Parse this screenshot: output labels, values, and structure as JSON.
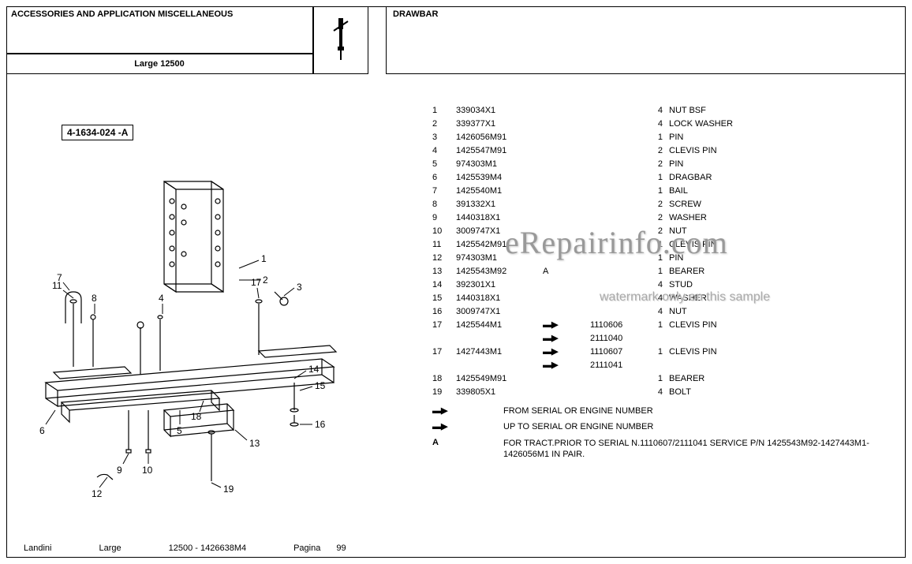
{
  "header": {
    "section_title": "ACCESSORIES AND APPLICATION MISCELLANEOUS",
    "model": "Large 12500",
    "assembly_title": "DRAWBAR"
  },
  "diagram": {
    "code": "4-1634-024 -A",
    "callouts": [
      "1",
      "2",
      "3",
      "4",
      "5",
      "6",
      "7",
      "8",
      "9",
      "10",
      "11",
      "12",
      "13",
      "14",
      "15",
      "16",
      "17",
      "18",
      "19"
    ]
  },
  "parts": [
    {
      "ref": "1",
      "part": "339034X1",
      "note": "",
      "serial": "",
      "qty": "4",
      "desc": "NUT BSF"
    },
    {
      "ref": "2",
      "part": "339377X1",
      "note": "",
      "serial": "",
      "qty": "4",
      "desc": "LOCK WASHER"
    },
    {
      "ref": "3",
      "part": "1426056M91",
      "note": "",
      "serial": "",
      "qty": "1",
      "desc": "PIN"
    },
    {
      "ref": "4",
      "part": "1425547M91",
      "note": "",
      "serial": "",
      "qty": "2",
      "desc": "CLEVIS PIN"
    },
    {
      "ref": "5",
      "part": "974303M1",
      "note": "",
      "serial": "",
      "qty": "2",
      "desc": "PIN"
    },
    {
      "ref": "6",
      "part": "1425539M4",
      "note": "",
      "serial": "",
      "qty": "1",
      "desc": "DRAGBAR"
    },
    {
      "ref": "7",
      "part": "1425540M1",
      "note": "",
      "serial": "",
      "qty": "1",
      "desc": "BAIL"
    },
    {
      "ref": "8",
      "part": "391332X1",
      "note": "",
      "serial": "",
      "qty": "2",
      "desc": "SCREW"
    },
    {
      "ref": "9",
      "part": "1440318X1",
      "note": "",
      "serial": "",
      "qty": "2",
      "desc": "WASHER"
    },
    {
      "ref": "10",
      "part": "3009747X1",
      "note": "",
      "serial": "",
      "qty": "2",
      "desc": "NUT"
    },
    {
      "ref": "11",
      "part": "1425542M91",
      "note": "",
      "serial": "",
      "qty": "1",
      "desc": "CLEVIS PIN"
    },
    {
      "ref": "12",
      "part": "974303M1",
      "note": "",
      "serial": "",
      "qty": "1",
      "desc": "PIN"
    },
    {
      "ref": "13",
      "part": "1425543M92",
      "note": "A",
      "serial": "",
      "qty": "1",
      "desc": "BEARER"
    },
    {
      "ref": "14",
      "part": "392301X1",
      "note": "",
      "serial": "",
      "qty": "4",
      "desc": "STUD"
    },
    {
      "ref": "15",
      "part": "1440318X1",
      "note": "",
      "serial": "",
      "qty": "4",
      "desc": "WASHER"
    },
    {
      "ref": "16",
      "part": "3009747X1",
      "note": "",
      "serial": "",
      "qty": "4",
      "desc": "NUT"
    },
    {
      "ref": "17",
      "part": "1425544M1",
      "note": "→",
      "serial": "1110606",
      "qty": "1",
      "desc": "CLEVIS PIN"
    },
    {
      "ref": "",
      "part": "",
      "note": "→",
      "serial": "2111040",
      "qty": "",
      "desc": ""
    },
    {
      "ref": "17",
      "part": "1427443M1",
      "note": "←",
      "serial": "1110607",
      "qty": "1",
      "desc": "CLEVIS PIN"
    },
    {
      "ref": "",
      "part": "",
      "note": "→",
      "serial": "2111041",
      "qty": "",
      "desc": ""
    },
    {
      "ref": "18",
      "part": "1425549M91",
      "note": "",
      "serial": "",
      "qty": "1",
      "desc": "BEARER"
    },
    {
      "ref": "19",
      "part": "339805X1",
      "note": "",
      "serial": "",
      "qty": "4",
      "desc": "BOLT"
    }
  ],
  "legend": [
    {
      "symbol": "←",
      "text": "FROM SERIAL OR ENGINE NUMBER"
    },
    {
      "symbol": "→",
      "text": "UP TO SERIAL OR ENGINE NUMBER"
    },
    {
      "symbol": "A",
      "text": "FOR TRACT.PRIOR TO SERIAL N.1110607/2111041 SERVICE P/N 1425543M92-1427443M1-1426056M1 IN PAIR."
    }
  ],
  "footer": {
    "brand": "Landini",
    "series": "Large",
    "model_pub": "12500 - 1426638M4",
    "page_label": "Pagina",
    "page_num": "99"
  },
  "watermark": {
    "line1": "eRepairinfo.com",
    "line2": "watermark only on this sample"
  },
  "colors": {
    "text": "#000000",
    "border": "#000000",
    "watermark": "#999999",
    "background": "#ffffff"
  }
}
